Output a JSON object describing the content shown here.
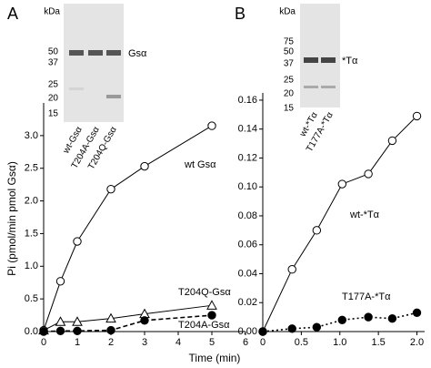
{
  "x_label": "Time (min)",
  "chart_data": [
    {
      "type": "line",
      "panel": "A",
      "y_label": "Pi (pmol/min pmol Gsα)",
      "xlim": [
        0,
        6
      ],
      "xticks": [
        0,
        1,
        2,
        3,
        4,
        5,
        6
      ],
      "ylim": [
        0,
        3.5
      ],
      "yticks": [
        {
          "value": 0,
          "label": "0.0"
        },
        {
          "value": 0.5,
          "label": "0.5"
        },
        {
          "value": 1,
          "label": "1.0"
        },
        {
          "value": 1.5,
          "label": "1.5"
        },
        {
          "value": 2,
          "label": "2.0"
        },
        {
          "value": 2.5,
          "label": "2.5"
        },
        {
          "value": 3,
          "label": "3.0"
        }
      ],
      "gel": {
        "unit": "kDa",
        "markers": [
          50,
          37,
          25,
          20,
          15
        ],
        "band_label": "Gsα",
        "lanes": [
          "wt-Gsα",
          "T204A-Gsα",
          "T204Q-Gsα"
        ]
      },
      "series": [
        {
          "name": "wt Gsα",
          "color": "#000000",
          "marker": "open-circle",
          "line": "solid",
          "x": [
            0,
            0.5,
            1,
            2,
            3,
            5
          ],
          "values": [
            0.02,
            0.77,
            1.38,
            2.18,
            2.53,
            3.15
          ]
        },
        {
          "name": "T204Q-Gsα",
          "color": "#000000",
          "marker": "open-triangle",
          "line": "solid",
          "x": [
            0,
            0.5,
            1,
            2,
            3,
            5
          ],
          "values": [
            0.02,
            0.15,
            0.15,
            0.2,
            0.27,
            0.4
          ]
        },
        {
          "name": "T204A-Gsα",
          "color": "#000000",
          "marker": "filled-circle",
          "line": "dashed",
          "x": [
            0,
            0.5,
            1,
            2,
            3,
            5
          ],
          "values": [
            0,
            0.01,
            0.01,
            0.02,
            0.17,
            0.25
          ]
        }
      ]
    },
    {
      "type": "line",
      "panel": "B",
      "xlim": [
        0,
        2.1
      ],
      "xticks": [
        0,
        0.5,
        {
          "value": 1,
          "label": "1.0"
        },
        1.5,
        {
          "value": 2,
          "label": "2.0"
        }
      ],
      "ylim": [
        0,
        0.165
      ],
      "yticks": [
        {
          "value": 0,
          "label": "0.00"
        },
        {
          "value": 0.02,
          "label": "0.02"
        },
        {
          "value": 0.04,
          "label": "0.04"
        },
        {
          "value": 0.06,
          "label": "0.06"
        },
        {
          "value": 0.08,
          "label": "0.08"
        },
        {
          "value": 0.1,
          "label": "0.10"
        },
        {
          "value": 0.12,
          "label": "0.12"
        },
        {
          "value": 0.14,
          "label": "0.14"
        },
        {
          "value": 0.16,
          "label": "0.16"
        }
      ],
      "gel": {
        "unit": "kDa",
        "markers": [
          75,
          50,
          37,
          25,
          20,
          15
        ],
        "band_label": "*Tα",
        "lanes": [
          "wt-*Tα",
          "T177A-*Tα"
        ]
      },
      "series": [
        {
          "name": "wt-*Tα",
          "color": "#000000",
          "marker": "open-circle",
          "line": "solid",
          "x": [
            0,
            0.38,
            0.7,
            1.03,
            1.37,
            1.68,
            2.0
          ],
          "values": [
            0,
            0.043,
            0.07,
            0.102,
            0.109,
            0.132,
            0.149
          ]
        },
        {
          "name": "T177A-*Tα",
          "color": "#000000",
          "marker": "filled-circle",
          "line": "dotted",
          "x": [
            0,
            0.38,
            0.7,
            1.03,
            1.37,
            1.68,
            2.0
          ],
          "values": [
            0,
            0.002,
            0.003,
            0.008,
            0.01,
            0.009,
            0.013
          ]
        }
      ]
    }
  ]
}
